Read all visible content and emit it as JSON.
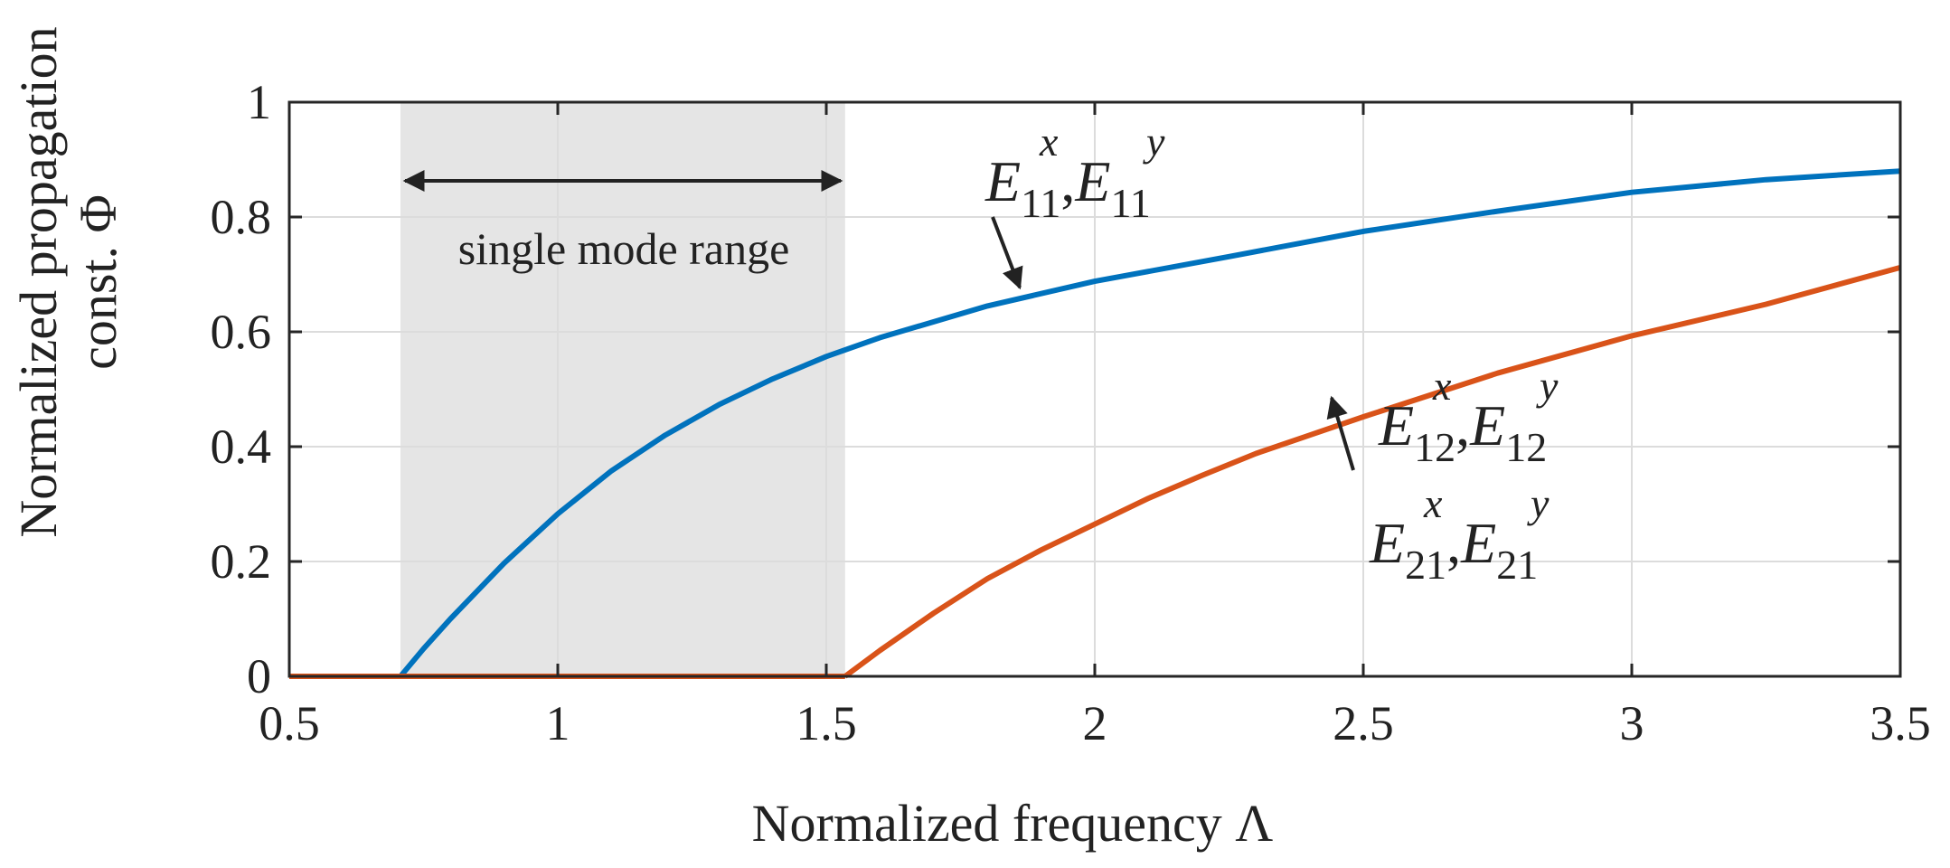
{
  "chart_data": {
    "type": "line",
    "title": "",
    "xlabel": "Normalized frequency Λ",
    "ylabel_lines": [
      "Normalized propagation",
      "const. Φ"
    ],
    "xlim": [
      0.5,
      3.5
    ],
    "ylim": [
      0,
      1
    ],
    "grid": true,
    "xticks": [
      "0.5",
      "1",
      "1.5",
      "2",
      "2.5",
      "3",
      "3.5"
    ],
    "yticks": [
      "0",
      "0.2",
      "0.4",
      "0.6",
      "0.8",
      "1"
    ],
    "shaded_region": {
      "x_start": 0.707,
      "x_end": 1.535,
      "label": "single mode range"
    },
    "series": [
      {
        "name": "E11",
        "color": "#0072BD",
        "x": [
          0.707,
          0.75,
          0.8,
          0.9,
          1.0,
          1.1,
          1.2,
          1.3,
          1.4,
          1.5,
          1.6,
          1.8,
          2.0,
          2.25,
          2.5,
          2.75,
          3.0,
          3.25,
          3.5
        ],
        "y": [
          0.0,
          0.048,
          0.1,
          0.197,
          0.283,
          0.358,
          0.42,
          0.473,
          0.518,
          0.557,
          0.59,
          0.645,
          0.688,
          0.731,
          0.775,
          0.81,
          0.843,
          0.865,
          0.88
        ]
      },
      {
        "name": "E12/E21",
        "color": "#D95319",
        "x": [
          1.535,
          1.6,
          1.7,
          1.8,
          1.9,
          2.0,
          2.1,
          2.2,
          2.3,
          2.4,
          2.5,
          2.75,
          3.0,
          3.25,
          3.5
        ],
        "y": [
          0.0,
          0.045,
          0.11,
          0.17,
          0.22,
          0.265,
          0.31,
          0.35,
          0.388,
          0.42,
          0.452,
          0.528,
          0.593,
          0.648,
          0.712
        ]
      }
    ],
    "annotations": [
      {
        "base": "E",
        "sub": "11",
        "sup1": "x",
        "sup2": "y",
        "sep": ","
      },
      {
        "base": "E",
        "sub": "12",
        "sup1": "x",
        "sup2": "y",
        "sep": ","
      },
      {
        "base": "E",
        "sub": "21",
        "sup1": "x",
        "sup2": "y",
        "sep": ","
      }
    ]
  }
}
